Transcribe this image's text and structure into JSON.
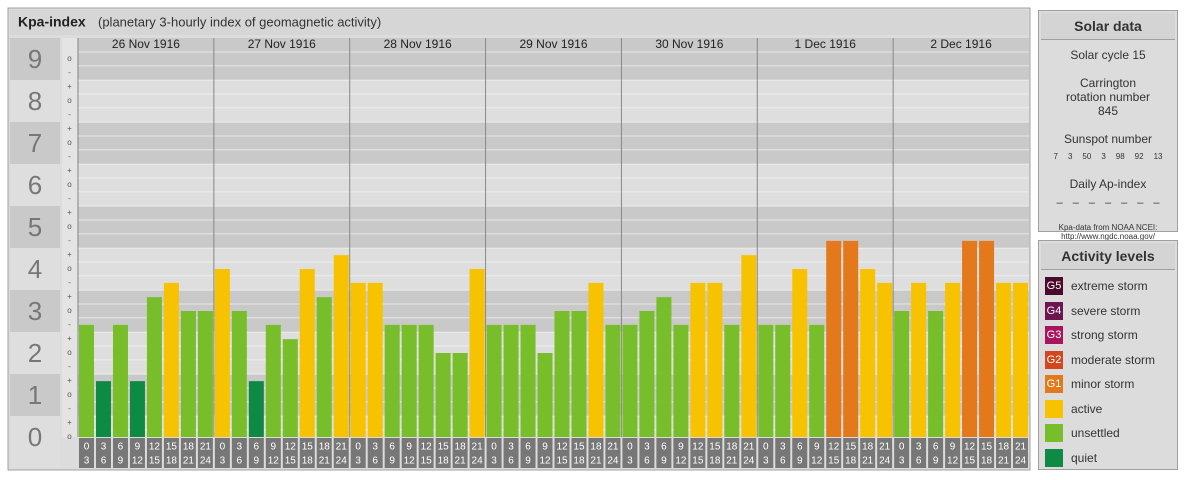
{
  "header": {
    "title": "Kpa-index",
    "subtitle": "(planetary 3-hourly index of geomagnetic activity)"
  },
  "chart_data": {
    "type": "bar",
    "days": [
      "26 Nov 1916",
      "27 Nov 1916",
      "28 Nov 1916",
      "29 Nov 1916",
      "30 Nov 1916",
      "1 Dec 1916",
      "2 Dec 1916"
    ],
    "hours": [
      {
        "from": "0",
        "to": "3"
      },
      {
        "from": "3",
        "to": "6"
      },
      {
        "from": "6",
        "to": "9"
      },
      {
        "from": "9",
        "to": "12"
      },
      {
        "from": "12",
        "to": "15"
      },
      {
        "from": "15",
        "to": "18"
      },
      {
        "from": "18",
        "to": "21"
      },
      {
        "from": "21",
        "to": "24"
      }
    ],
    "values": [
      [
        2.67,
        1.33,
        2.67,
        1.33,
        3.33,
        3.67,
        3,
        3
      ],
      [
        4,
        3,
        1.33,
        2.67,
        2.33,
        4,
        3.33,
        4.33
      ],
      [
        3.67,
        3.67,
        2.67,
        2.67,
        2.67,
        2,
        2,
        4
      ],
      [
        2.67,
        2.67,
        2.67,
        2,
        3,
        3,
        3.67,
        2.67
      ],
      [
        2.67,
        3,
        3.33,
        2.67,
        3.67,
        3.67,
        2.67,
        4.33
      ],
      [
        2.67,
        2.67,
        4,
        2.67,
        4.67,
        4.67,
        4,
        3.67
      ],
      [
        3,
        3.67,
        3,
        3.67,
        4.67,
        4.67,
        3.67,
        3.67
      ]
    ],
    "colors": [
      [
        "#78bd2a",
        "#0f8a45",
        "#78bd2a",
        "#0f8a45",
        "#78bd2a",
        "#f7c300",
        "#78bd2a",
        "#78bd2a"
      ],
      [
        "#f7c300",
        "#78bd2a",
        "#0f8a45",
        "#78bd2a",
        "#78bd2a",
        "#f7c300",
        "#78bd2a",
        "#f7c300"
      ],
      [
        "#f7c300",
        "#f7c300",
        "#78bd2a",
        "#78bd2a",
        "#78bd2a",
        "#78bd2a",
        "#78bd2a",
        "#f7c300"
      ],
      [
        "#78bd2a",
        "#78bd2a",
        "#78bd2a",
        "#78bd2a",
        "#78bd2a",
        "#78bd2a",
        "#f7c300",
        "#78bd2a"
      ],
      [
        "#78bd2a",
        "#78bd2a",
        "#78bd2a",
        "#78bd2a",
        "#f7c300",
        "#f7c300",
        "#78bd2a",
        "#f7c300"
      ],
      [
        "#78bd2a",
        "#78bd2a",
        "#f7c300",
        "#78bd2a",
        "#e4791c",
        "#e4791c",
        "#f7c300",
        "#f7c300"
      ],
      [
        "#78bd2a",
        "#f7c300",
        "#78bd2a",
        "#f7c300",
        "#e4791c",
        "#e4791c",
        "#f7c300",
        "#f7c300"
      ]
    ],
    "ylim": [
      0,
      9.5
    ],
    "yticks": [
      0,
      1,
      2,
      3,
      4,
      5,
      6,
      7,
      8,
      9
    ],
    "yminorticks": [
      {
        "value": 0,
        "label": "o"
      },
      {
        "value": 0.33,
        "label": "+"
      },
      {
        "value": 0.67,
        "label": "-"
      },
      {
        "value": 1,
        "label": "o"
      },
      {
        "value": 1.33,
        "label": "+"
      },
      {
        "value": 1.67,
        "label": "-"
      },
      {
        "value": 2,
        "label": "o"
      },
      {
        "value": 2.33,
        "label": "+"
      },
      {
        "value": 2.67,
        "label": "-"
      },
      {
        "value": 3,
        "label": "o"
      },
      {
        "value": 3.33,
        "label": "+"
      },
      {
        "value": 3.67,
        "label": "-"
      },
      {
        "value": 4,
        "label": "o"
      },
      {
        "value": 4.33,
        "label": "+"
      },
      {
        "value": 4.67,
        "label": "-"
      },
      {
        "value": 5,
        "label": "o"
      },
      {
        "value": 5.33,
        "label": "+"
      },
      {
        "value": 5.67,
        "label": "-"
      },
      {
        "value": 6,
        "label": "o"
      },
      {
        "value": 6.33,
        "label": "+"
      },
      {
        "value": 6.67,
        "label": "-"
      },
      {
        "value": 7,
        "label": "o"
      },
      {
        "value": 7.33,
        "label": "+"
      },
      {
        "value": 7.67,
        "label": "-"
      },
      {
        "value": 8,
        "label": "o"
      },
      {
        "value": 8.33,
        "label": "+"
      },
      {
        "value": 8.67,
        "label": "-"
      },
      {
        "value": 9,
        "label": "o"
      }
    ],
    "grid": true
  },
  "solar_data": {
    "title": "Solar data",
    "cycle": "Solar cycle 15",
    "carrington": "Carrington rotation number 845",
    "sunspot_title": "Sunspot number",
    "sunspot_numbers": [
      7,
      3,
      50,
      3,
      98,
      92,
      13
    ],
    "ap_title": "Daily Ap-index",
    "ap_values": [
      "–",
      "–",
      "–",
      "–",
      "–",
      "–",
      "–"
    ],
    "source": "Kpa-data from NOAA NCEI:",
    "source_url": "http://www.ngdc.noaa.gov/"
  },
  "activity_levels": {
    "title": "Activity levels",
    "items": [
      {
        "badge": "G5",
        "label": "extreme storm",
        "color": "#4a0a2c"
      },
      {
        "badge": "G4",
        "label": "severe storm",
        "color": "#6e1450"
      },
      {
        "badge": "G3",
        "label": "strong storm",
        "color": "#a8155e"
      },
      {
        "badge": "G2",
        "label": "moderate storm",
        "color": "#d2471d"
      },
      {
        "badge": "G1",
        "label": "minor storm",
        "color": "#e4791c"
      },
      {
        "label": "active",
        "color": "#f7c300"
      },
      {
        "label": "unsettled",
        "color": "#78bd2a"
      },
      {
        "label": "quiet",
        "color": "#0f8a45"
      }
    ]
  }
}
